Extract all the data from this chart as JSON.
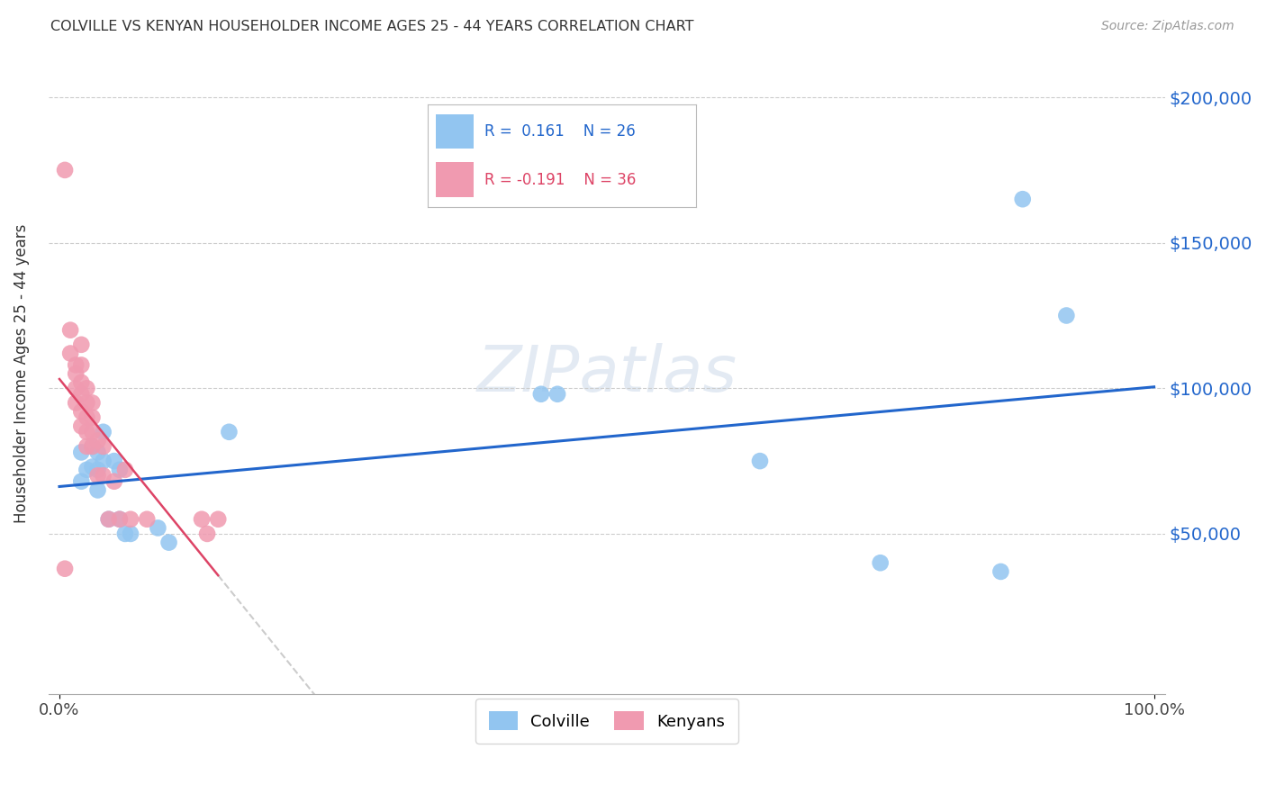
{
  "title": "COLVILLE VS KENYAN HOUSEHOLDER INCOME AGES 25 - 44 YEARS CORRELATION CHART",
  "source": "Source: ZipAtlas.com",
  "ylabel": "Householder Income Ages 25 - 44 years",
  "colville_R": 0.161,
  "colville_N": 26,
  "kenyan_R": -0.191,
  "kenyan_N": 36,
  "colville_color": "#92c5f0",
  "kenyan_color": "#f09ab0",
  "colville_line_color": "#2266cc",
  "kenyan_line_color": "#dd4466",
  "kenyan_dash_color": "#cccccc",
  "background_color": "#ffffff",
  "grid_color": "#cccccc",
  "ytick_labels": [
    "$50,000",
    "$100,000",
    "$150,000",
    "$200,000"
  ],
  "ytick_values": [
    50000,
    100000,
    150000,
    200000
  ],
  "ylim": [
    -5000,
    215000
  ],
  "xlim": [
    -0.01,
    1.01
  ],
  "xtick_labels": [
    "0.0%",
    "100.0%"
  ],
  "xtick_positions": [
    0.0,
    1.0
  ],
  "colville_x": [
    0.02,
    0.025,
    0.03,
    0.03,
    0.035,
    0.035,
    0.035,
    0.04,
    0.04,
    0.045,
    0.05,
    0.055,
    0.055,
    0.06,
    0.065,
    0.09,
    0.1,
    0.155,
    0.44,
    0.455,
    0.64,
    0.75,
    0.86,
    0.88,
    0.92,
    0.02
  ],
  "colville_y": [
    78000,
    72000,
    80000,
    73000,
    78000,
    72000,
    65000,
    85000,
    75000,
    55000,
    75000,
    72000,
    55000,
    50000,
    50000,
    52000,
    47000,
    85000,
    98000,
    98000,
    75000,
    40000,
    37000,
    165000,
    125000,
    68000
  ],
  "kenyan_x": [
    0.005,
    0.01,
    0.01,
    0.015,
    0.015,
    0.015,
    0.015,
    0.02,
    0.02,
    0.02,
    0.02,
    0.02,
    0.02,
    0.025,
    0.025,
    0.025,
    0.025,
    0.025,
    0.03,
    0.03,
    0.03,
    0.03,
    0.035,
    0.035,
    0.04,
    0.04,
    0.045,
    0.05,
    0.055,
    0.06,
    0.065,
    0.08,
    0.13,
    0.135,
    0.145,
    0.005
  ],
  "kenyan_y": [
    175000,
    120000,
    112000,
    108000,
    105000,
    100000,
    95000,
    115000,
    108000,
    102000,
    98000,
    92000,
    87000,
    100000,
    95000,
    90000,
    85000,
    80000,
    95000,
    90000,
    85000,
    80000,
    82000,
    70000,
    80000,
    70000,
    55000,
    68000,
    55000,
    72000,
    55000,
    55000,
    55000,
    50000,
    55000,
    38000
  ]
}
